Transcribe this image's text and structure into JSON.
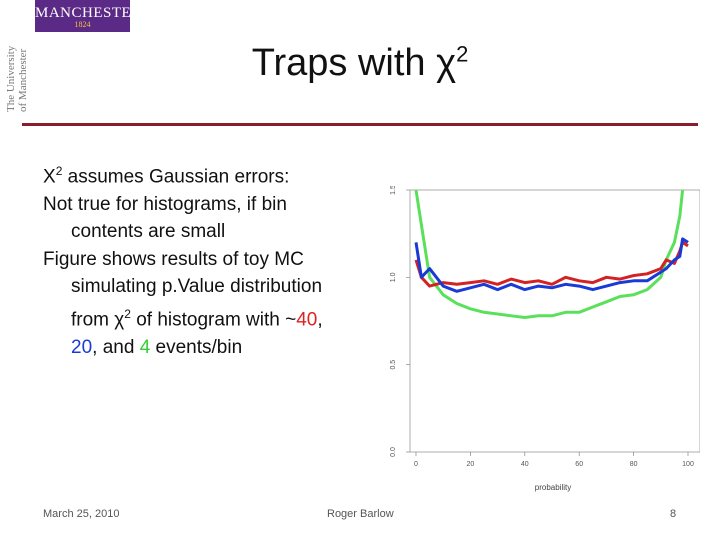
{
  "logo": {
    "name": "MANCHESTER",
    "year": "1824",
    "vertical_lines": [
      "The University",
      "of Manchester"
    ]
  },
  "slide": {
    "title_main": "Traps with χ",
    "title_sup": "2",
    "bullets": {
      "b1_main": "X",
      "b1_sup": "2",
      "b1_rest": " assumes Gaussian errors:",
      "b2": "Not true for histograms, if bin contents are small",
      "b3_text": "Figure shows results of toy MC simulating p.Value distribution from χ",
      "b3_sup": "2",
      "b3_text2": " of histogram with ~",
      "n40": "40",
      "sep1": ", ",
      "n20": "20",
      "sep2": ", and ",
      "n4": "4",
      "b3_end": " events/bin"
    }
  },
  "footer": {
    "date": "March 25, 2010",
    "author": "Roger Barlow",
    "page": "8"
  },
  "colors": {
    "red": "#d22222",
    "blue": "#1a3ad6",
    "green": "#5ae05a",
    "rule": "#8a1c2b",
    "logo": "#5b2a86"
  },
  "chart_data": {
    "type": "line",
    "xlabel": "probability",
    "ylabel": "",
    "xlim": [
      0,
      100
    ],
    "ylim": [
      0,
      1.5
    ],
    "x_ticks": [
      "0",
      "20",
      "40",
      "60",
      "80",
      "100"
    ],
    "y_ticks": [
      "0.0",
      "0.5",
      "1.0",
      "1.5"
    ],
    "x": [
      0,
      2,
      5,
      10,
      15,
      20,
      25,
      30,
      35,
      40,
      45,
      50,
      55,
      60,
      65,
      70,
      75,
      80,
      85,
      90,
      92,
      95,
      97,
      98,
      100
    ],
    "series": [
      {
        "color": "red",
        "values": [
          1.1,
          1.0,
          0.95,
          0.97,
          0.96,
          0.97,
          0.98,
          0.96,
          0.99,
          0.97,
          0.98,
          0.96,
          1.0,
          0.98,
          0.97,
          1.0,
          0.99,
          1.01,
          1.02,
          1.05,
          1.1,
          1.08,
          1.15,
          1.2,
          1.18
        ]
      },
      {
        "color": "blue",
        "values": [
          1.2,
          1.0,
          1.05,
          0.95,
          0.92,
          0.94,
          0.96,
          0.93,
          0.96,
          0.93,
          0.95,
          0.94,
          0.96,
          0.95,
          0.93,
          0.95,
          0.97,
          0.98,
          0.98,
          1.03,
          1.05,
          1.1,
          1.12,
          1.22,
          1.2
        ]
      },
      {
        "color": "green",
        "values": [
          1.5,
          1.3,
          1.0,
          0.9,
          0.85,
          0.82,
          0.8,
          0.79,
          0.78,
          0.77,
          0.78,
          0.78,
          0.8,
          0.8,
          0.83,
          0.86,
          0.89,
          0.9,
          0.93,
          1.0,
          1.1,
          1.2,
          1.35,
          1.5,
          1.6
        ]
      }
    ]
  }
}
